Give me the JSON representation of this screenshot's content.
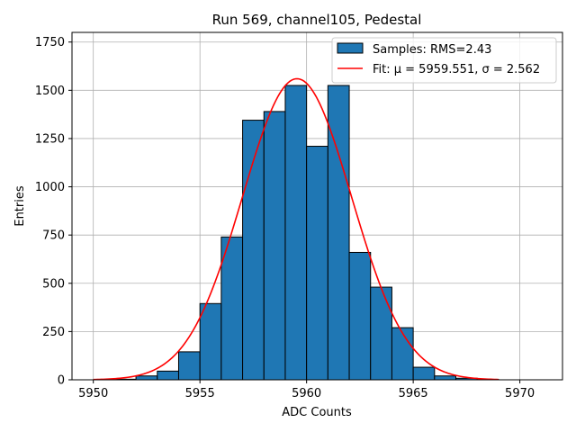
{
  "chart_data": {
    "type": "bar",
    "title": "Run 569, channel105, Pedestal",
    "xlabel": "ADC Counts",
    "ylabel": "Entries",
    "xlim": [
      5949,
      5972
    ],
    "ylim": [
      0,
      1800
    ],
    "xticks": [
      5950,
      5955,
      5960,
      5965,
      5970
    ],
    "yticks": [
      0,
      250,
      500,
      750,
      1000,
      1250,
      1500,
      1750
    ],
    "grid": true,
    "legend_position": "top-right",
    "histogram": {
      "name": "Samples: RMS=2.43",
      "color": "#1f77b4",
      "edge_color": "#000000",
      "bin_edges": [
        5950,
        5951,
        5952,
        5953,
        5954,
        5955,
        5956,
        5957,
        5958,
        5959,
        5960,
        5961,
        5962,
        5963,
        5964,
        5965,
        5966,
        5967,
        5968,
        5969,
        5970,
        5971
      ],
      "counts": [
        0,
        3,
        20,
        45,
        145,
        395,
        740,
        1345,
        1390,
        1525,
        1210,
        1525,
        660,
        480,
        270,
        65,
        20,
        8,
        2,
        0,
        0
      ]
    },
    "fit": {
      "name": "Fit: μ = 5959.551, σ = 2.562",
      "color": "#ff0000",
      "type": "gaussian",
      "mu": 5959.551,
      "sigma": 2.562,
      "amplitude": 1560,
      "x_range": [
        5950,
        5969
      ]
    }
  }
}
